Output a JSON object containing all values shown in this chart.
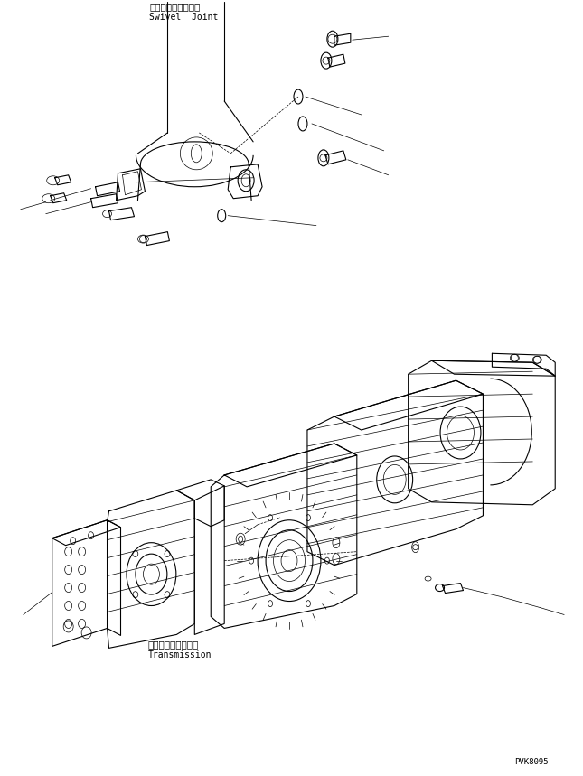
{
  "bg_color": "#ffffff",
  "line_color": "#000000",
  "fig_width": 6.45,
  "fig_height": 8.59,
  "dpi": 100,
  "label_swivel_jp": "スイベルジョイント",
  "label_swivel_en": "Swivel  Joint",
  "label_trans_jp": "トランスミッション",
  "label_trans_en": "Transmission",
  "part_number": "PVK8095",
  "lw": 0.8,
  "thin_lw": 0.5
}
